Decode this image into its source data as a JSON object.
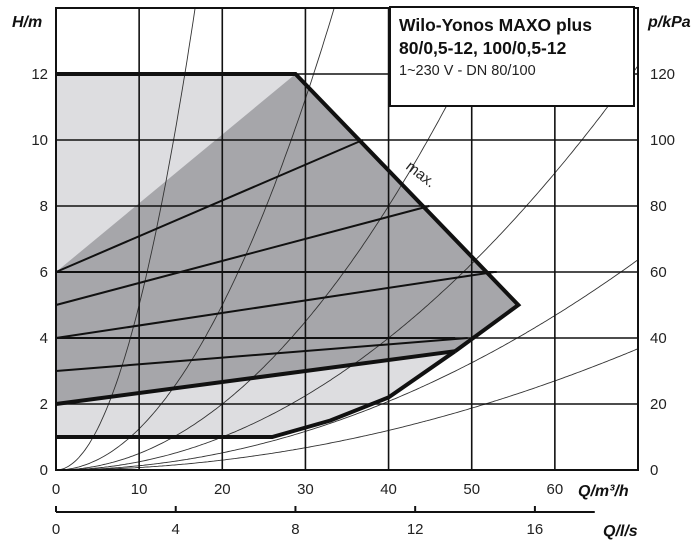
{
  "chart_data": {
    "type": "line",
    "title_lines": [
      "Wilo-Yonos MAXO plus",
      "80/0,5-12, 100/0,5-12"
    ],
    "subtitle": "1~230 V - DN 80/100",
    "ylabel_left": "H/m",
    "ylabel_right": "p/kPa",
    "xlabel_top": "Q/m³/h",
    "xlabel_bottom": "Q/l/s",
    "xlim": [
      0,
      70
    ],
    "ylim": [
      0,
      14
    ],
    "x_ticks": [
      "0",
      "10",
      "20",
      "30",
      "40",
      "50",
      "60"
    ],
    "y_ticks_left": [
      "0",
      "2",
      "4",
      "6",
      "8",
      "10",
      "12"
    ],
    "y_ticks_right": [
      "0",
      "20",
      "40",
      "60",
      "80",
      "100",
      "120"
    ],
    "x2_ticks": [
      "0",
      "4",
      "8",
      "12",
      "16"
    ],
    "grid": true,
    "annotation": "max.",
    "series": [
      {
        "role": "envelope-max",
        "x": [
          0,
          28.8,
          55.6,
          48
        ],
        "y": [
          12,
          12,
          5,
          3.6
        ]
      },
      {
        "role": "envelope-min",
        "x": [
          0,
          26,
          33,
          40,
          48
        ],
        "y": [
          1,
          1,
          1.5,
          2.2,
          3.6
        ]
      },
      {
        "role": "control-line",
        "x": [
          0,
          36.9
        ],
        "y": [
          6,
          10
        ]
      },
      {
        "role": "control-line",
        "x": [
          0,
          44.9
        ],
        "y": [
          5,
          8
        ]
      },
      {
        "role": "control-line",
        "x": [
          0,
          52.7
        ],
        "y": [
          4,
          6
        ]
      },
      {
        "role": "control-line",
        "x": [
          0,
          49.5
        ],
        "y": [
          3,
          4
        ]
      },
      {
        "role": "control-line",
        "x": [
          0,
          48
        ],
        "y": [
          2,
          3.6
        ]
      },
      {
        "role": "control-line",
        "x": [
          0,
          53
        ],
        "y": [
          6,
          6
        ]
      },
      {
        "role": "control-line",
        "x": [
          0,
          48
        ],
        "y": [
          4,
          4
        ]
      }
    ],
    "system_curves_k": [
      0.05,
      0.0125,
      0.005,
      0.0025,
      0.0013,
      0.00075
    ]
  },
  "colors": {
    "dark_region": "#a6a6aa",
    "light_region": "#dddde0",
    "line": "#111111"
  }
}
